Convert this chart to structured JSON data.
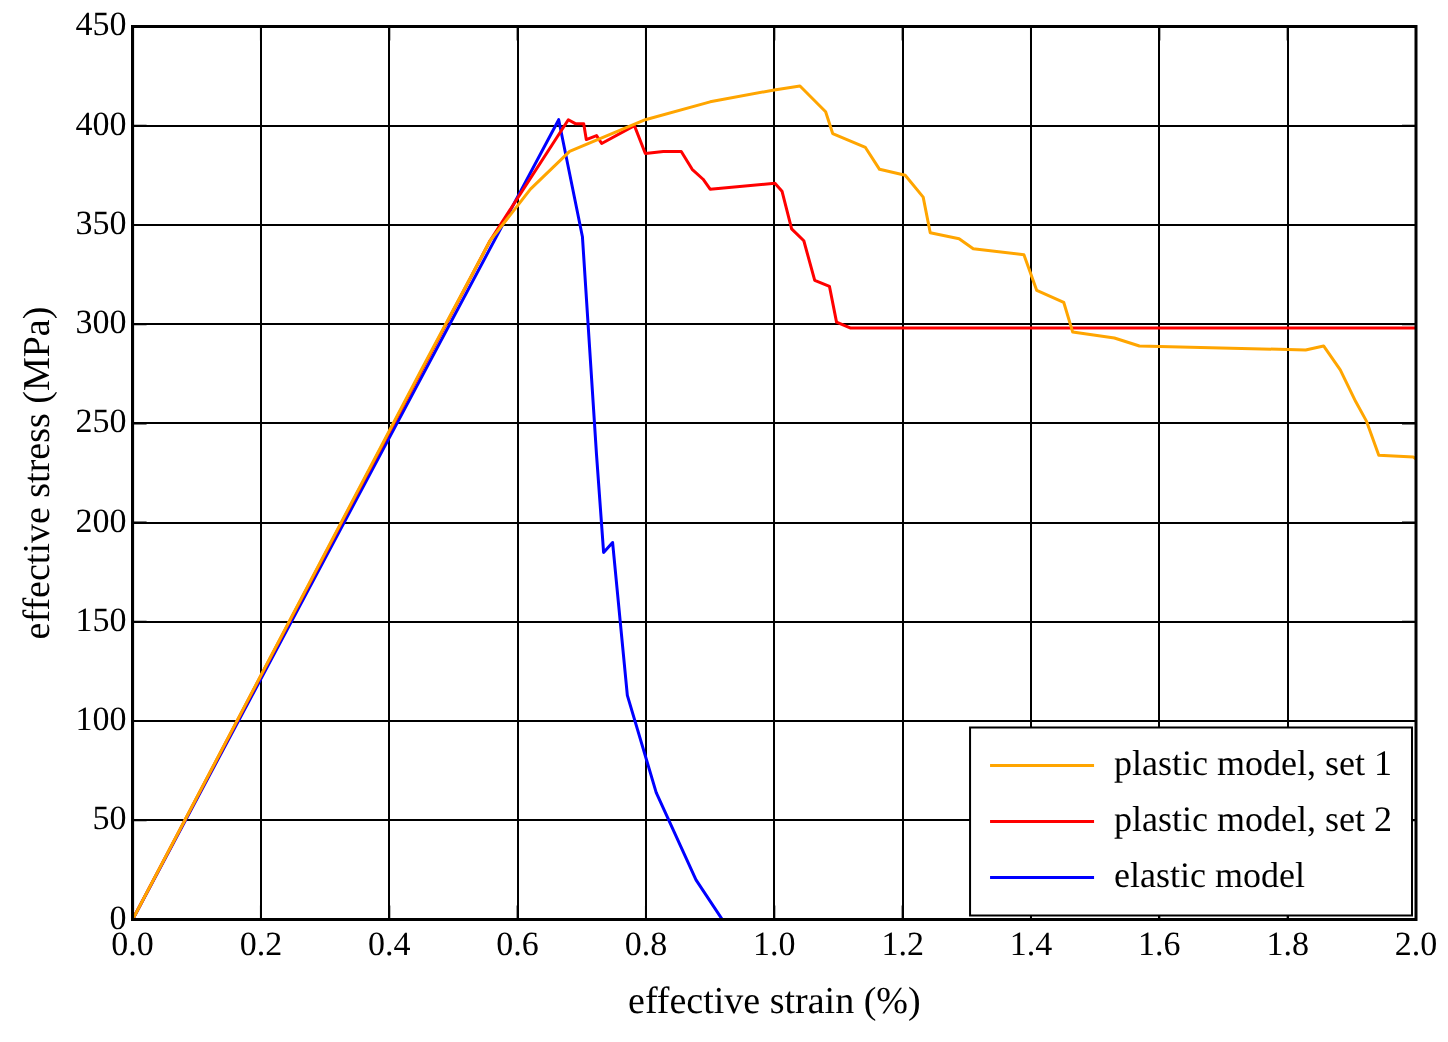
{
  "chart_data": {
    "type": "line",
    "xlabel": "effective strain (%)",
    "ylabel": "effective stress (MPa)",
    "xlim": [
      0,
      2
    ],
    "ylim": [
      0,
      450
    ],
    "xticks": [
      {
        "value": 0,
        "label": "0.0"
      },
      0.2,
      0.4,
      0.6,
      0.8,
      {
        "value": 1,
        "label": "1.0"
      },
      1.2,
      1.4,
      1.6,
      1.8,
      {
        "value": 2,
        "label": "2.0"
      }
    ],
    "yticks": [
      0,
      50,
      100,
      150,
      200,
      250,
      300,
      350,
      400,
      450
    ],
    "grid": true,
    "legend": "bottom right",
    "marker": "none",
    "line_style": "solid",
    "series": [
      {
        "name": "plastic model, set 1",
        "color": "#ffa500",
        "x": [
          0,
          0.45,
          0.557,
          0.62,
          0.681,
          0.799,
          0.9,
          1.0,
          1.04,
          1.08,
          1.091,
          1.142,
          1.164,
          1.204,
          1.232,
          1.243,
          1.288,
          1.31,
          1.389,
          1.409,
          1.451,
          1.465,
          1.53,
          1.569,
          1.828,
          1.856,
          1.882,
          1.906,
          1.923,
          1.942,
          1.996,
          2.0
        ],
        "values": [
          0,
          277,
          342,
          368,
          387,
          403,
          412,
          418,
          420,
          407,
          396,
          389,
          378,
          375,
          364,
          346,
          343,
          338,
          335,
          317,
          311,
          296,
          293,
          289,
          287,
          289,
          277,
          261,
          251,
          234,
          233,
          232
        ]
      },
      {
        "name": "plastic model, set 2",
        "color": "#ff0000",
        "x": [
          0,
          0.557,
          0.679,
          0.69,
          0.703,
          0.707,
          0.723,
          0.731,
          0.782,
          0.799,
          0.827,
          0.855,
          0.872,
          0.889,
          0.9,
          1.001,
          1.012,
          1.027,
          1.046,
          1.063,
          1.086,
          1.097,
          1.119,
          2.0
        ],
        "values": [
          0,
          342,
          403,
          401,
          401,
          393,
          395,
          391,
          400,
          386,
          387,
          387,
          378,
          373,
          368,
          371,
          367,
          348,
          342,
          322,
          319,
          301,
          298,
          298
        ]
      },
      {
        "name": "elastic model",
        "color": "#0000ff",
        "x": [
          0,
          0.664,
          0.701,
          0.723,
          0.734,
          0.748,
          0.771,
          0.816,
          0.878,
          0.919
        ],
        "values": [
          0,
          403,
          344,
          234,
          185,
          190,
          113,
          64,
          20,
          0
        ]
      }
    ]
  }
}
